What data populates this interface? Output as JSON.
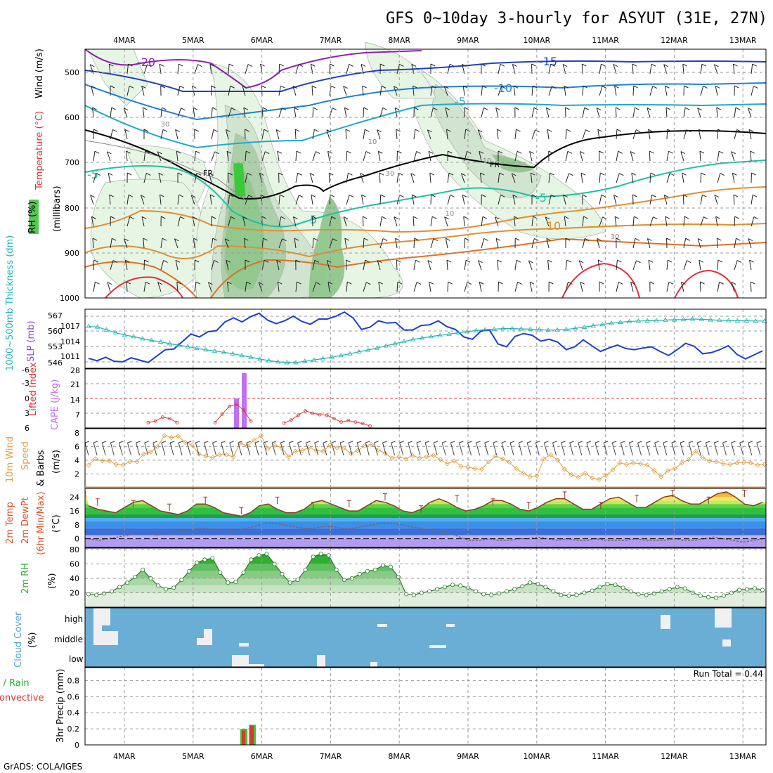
{
  "title": "GFS 0~10day 3-hourly for ASYUT (31E, 27N)",
  "footer": "GrADS: COLA/IGES",
  "dates": [
    "4MAR",
    "5MAR",
    "6MAR",
    "7MAR",
    "8MAR",
    "9MAR",
    "10MAR",
    "11MAR",
    "12MAR",
    "13MAR"
  ],
  "colors": {
    "rh_green": "#33cc33",
    "slp": "#1f3fcc",
    "thickness": "#20b2b2",
    "lifted": "#dd3333",
    "cape": "#c070f0",
    "wind10": "#e0a040",
    "rh2m": "#33aa33",
    "cloud": "#6aaed6",
    "precip_rain": "#33cc33",
    "precip_conv": "#dd3333"
  },
  "panels": {
    "upper": {
      "labels": {
        "wind": "Wind (m/s)",
        "temperature": "Temperature (°C)",
        "rh": "RH (%)",
        "millibars": "(millibars)"
      },
      "pressure_ticks": [
        "500",
        "600",
        "700",
        "800",
        "900",
        "1000"
      ],
      "contour_labels": {
        "t_m20": "-20",
        "t_m15": "-15",
        "t_m10": "-10",
        "t_m5a": "-5",
        "t_m5b": "-5",
        "t_m5c": "-5",
        "t_5a": "5",
        "t_5b": "5",
        "t_10": "10",
        "fr1": "FR",
        "fr2": "FR",
        "rh30a": "30",
        "rh30b": "30",
        "rh30c": "30",
        "rh10a": "10",
        "rh10b": "10",
        "rh10c": "10"
      }
    },
    "slp": {
      "labels": {
        "thickness": "1000~500mb Thickness (dm)",
        "slp": "SLP (mb)"
      },
      "left_ticks": [
        "567",
        "560",
        "553",
        "546"
      ],
      "right_ticks": [
        "1017",
        "1014",
        "1011"
      ]
    },
    "cape": {
      "labels": {
        "lifted": "Lifted Index",
        "cape": "CAPE (J/kg)"
      },
      "left_ticks": [
        "-6",
        "-3",
        "0",
        "3",
        "6"
      ],
      "right_ticks": [
        "28",
        "21",
        "14",
        "7"
      ]
    },
    "wind10": {
      "labels": {
        "a": "10m Wind",
        "b": "Speed",
        "c": "& Barbs",
        "d": "(m/s)"
      },
      "ticks": [
        "8",
        "6",
        "4",
        "2"
      ]
    },
    "temp2m": {
      "labels": {
        "a": "2m Temp",
        "b": "2m DewPt",
        "c": "(6hr Min/Max)",
        "d": "(°C)"
      },
      "ticks": [
        "24",
        "16",
        "8",
        "0"
      ]
    },
    "rh2m": {
      "labels": {
        "a": "2m RH",
        "b": "(%)"
      },
      "ticks": [
        "80",
        "60",
        "40",
        "20"
      ]
    },
    "cloud": {
      "labels": {
        "a": "Cloud Cover",
        "b": "(%)"
      },
      "levels": [
        "high",
        "middle",
        "low"
      ]
    },
    "precip": {
      "labels": {
        "a": "Total / Rain",
        "b": "Convective",
        "c": "3hr Precip (mm)"
      },
      "ticks": [
        "0.8",
        "0.6",
        "0.4",
        "0.2",
        "0"
      ],
      "run_total": "Run Total = 0.44"
    }
  },
  "chart_data": [
    {
      "type": "line",
      "name": "SLP",
      "unit": "mb",
      "values": [
        1011.3,
        1010.9,
        1011.5,
        1010.8,
        1010.7,
        1011.4,
        1011.0,
        1010.6,
        1011.7,
        1012.8,
        1012.9,
        1014.2,
        1015.5,
        1015.0,
        1015.9,
        1016.1,
        1017.6,
        1018.3,
        1017.6,
        1018.5,
        1019.1,
        1017.9,
        1017.3,
        1017.8,
        1018.6,
        1017.7,
        1017.2,
        1018.1,
        1018.1,
        1018.6,
        1019.3,
        1018.3,
        1016.3,
        1016.7,
        1017.8,
        1017.4,
        1017.5,
        1016.2,
        1016.2,
        1017.0,
        1017.1,
        1017.8,
        1016.8,
        1016.3,
        1015.0,
        1014.6,
        1016.0,
        1016.2,
        1013.8,
        1013.3,
        1015.1,
        1015.6,
        1015.3,
        1014.3,
        1014.6,
        1014.1,
        1012.8,
        1013.3,
        1014.5,
        1013.5,
        1012.5,
        1013.1,
        1013.6,
        1013.0,
        1012.8,
        1013.1,
        1013.3,
        1012.5,
        1011.8,
        1012.8,
        1013.9,
        1013.4,
        1012.1,
        1012.3,
        1012.8,
        1013.5,
        1012.0,
        1011.2,
        1011.9,
        1012.6
      ]
    },
    {
      "type": "line",
      "name": "Thickness 1000-500mb",
      "unit": "dm",
      "values": [
        561.5,
        561.3,
        560.1,
        559.0,
        558.0,
        557.4,
        556.5,
        555.8,
        555.2,
        554.5,
        553.9,
        553.3,
        552.6,
        552.0,
        551.5,
        551.0,
        550.4,
        549.7,
        549.0,
        548.2,
        547.6,
        547.1,
        546.8,
        546.8,
        547.3,
        547.9,
        548.4,
        549.0,
        549.7,
        550.4,
        551.2,
        551.9,
        552.7,
        553.6,
        554.5,
        555.4,
        556.2,
        556.8,
        557.4,
        557.9,
        558.4,
        558.9,
        559.4,
        559.8,
        560.2,
        560.4,
        560.6,
        560.6,
        560.5,
        560.4,
        560.2,
        560.0,
        560.1,
        560.3,
        560.7,
        561.2,
        561.8,
        562.3,
        562.8,
        563.2,
        563.5,
        563.7,
        563.8,
        563.9,
        564.1,
        564.2,
        564.3,
        564.5,
        564.4,
        564.2,
        564.0,
        563.9,
        563.8,
        563.8,
        563.7,
        563.7
      ]
    },
    {
      "type": "bar",
      "name": "CAPE",
      "unit": "J/kg",
      "times": [
        "5MAR 15Z",
        "5MAR 18Z"
      ],
      "values": [
        14,
        26
      ]
    },
    {
      "type": "line",
      "name": "Lifted Index",
      "unit": "C",
      "segments": [
        [
          4.9,
          4.6,
          3.8,
          4.1,
          4.9
        ],
        [
          4.9,
          3.2,
          1.6,
          1.2,
          2.4,
          4.6
        ],
        [
          5.0,
          4.4,
          3.4,
          2.5,
          3.0,
          3.3,
          3.4,
          4.1,
          4.8,
          4.5,
          4.8,
          5.1,
          5.6
        ]
      ]
    },
    {
      "type": "line",
      "name": "10m Wind Speed",
      "unit": "m/s",
      "values": [
        3.3,
        4.2,
        3.9,
        3.9,
        3.4,
        3.3,
        3.8,
        3.8,
        4.9,
        5.2,
        6.0,
        7.6,
        7.3,
        7.5,
        6.6,
        6.2,
        4.9,
        4.6,
        4.4,
        4.8,
        4.8,
        4.5,
        6.5,
        6.1,
        6.9,
        7.6,
        5.7,
        6.2,
        5.8,
        4.5,
        5.3,
        5.4,
        5.9,
        5.4,
        5.3,
        6.2,
        5.8,
        5.8,
        5.0,
        5.4,
        6.1,
        6.3,
        5.5,
        5.0,
        4.3,
        4.5,
        4.2,
        4.7,
        4.3,
        4.5,
        4.7,
        4.1,
        3.5,
        3.9,
        3.1,
        3.0,
        2.8,
        2.7,
        3.8,
        4.6,
        4.2,
        3.7,
        2.8,
        2.1,
        1.6,
        1.7,
        4.2,
        4.8,
        4.0,
        2.7,
        1.9,
        1.5,
        2.1,
        1.4,
        1.2,
        1.8,
        2.6,
        3.6,
        3.4,
        3.6,
        3.5,
        3.3,
        2.5,
        1.6,
        2.5,
        2.8,
        3.6,
        4.1,
        5.3,
        4.4,
        3.9,
        3.8,
        3.5,
        3.4,
        3.6,
        3.7,
        3.6,
        3.3,
        3.4
      ]
    },
    {
      "type": "area",
      "name": "2m Temp",
      "unit": "C",
      "values": [
        19,
        17,
        16,
        15,
        18,
        21,
        22,
        19,
        16,
        15,
        14,
        16,
        20,
        20,
        18,
        15,
        14,
        13,
        15,
        19,
        20,
        17,
        15,
        15,
        17,
        21,
        22,
        20,
        18,
        16,
        16,
        19,
        22,
        21,
        19,
        16,
        15,
        17,
        21,
        23,
        21,
        18,
        16,
        17,
        19,
        22,
        22,
        20,
        17,
        16,
        18,
        21,
        23,
        23,
        20,
        17,
        17,
        20,
        23,
        24,
        21,
        18,
        18,
        21,
        24,
        25,
        22,
        20,
        20,
        23,
        26,
        27,
        24,
        20,
        19,
        21
      ]
    },
    {
      "type": "line",
      "name": "2m DewPt",
      "unit": "C",
      "values": [
        0,
        -1,
        0,
        1,
        2,
        3,
        3,
        2,
        3,
        4,
        5,
        6,
        6,
        5,
        4,
        5,
        6,
        7,
        9,
        9,
        8,
        7,
        6,
        6,
        7,
        7,
        6,
        6,
        7,
        8,
        9,
        9,
        8,
        7,
        6,
        5,
        4,
        3,
        1,
        -1,
        -1,
        0,
        -1,
        -1,
        0,
        0,
        1,
        0,
        -1,
        0,
        -1,
        -1,
        0,
        -1,
        -1,
        -1,
        0,
        -1,
        -1,
        -1,
        0,
        -1,
        -1,
        0,
        1,
        0,
        -1,
        -2,
        -1,
        0
      ]
    },
    {
      "type": "area",
      "name": "2m RH",
      "unit": "%",
      "values": [
        18,
        17,
        19,
        22,
        28,
        34,
        42,
        52,
        40,
        30,
        25,
        27,
        38,
        50,
        62,
        66,
        68,
        48,
        34,
        35,
        48,
        66,
        72,
        74,
        60,
        46,
        34,
        38,
        52,
        70,
        74,
        72,
        52,
        38,
        40,
        46,
        50,
        52,
        58,
        56,
        42,
        18,
        17,
        20,
        22,
        25,
        28,
        31,
        30,
        27,
        22,
        18,
        17,
        19,
        22,
        25,
        29,
        34,
        32,
        28,
        22,
        17,
        16,
        17,
        20,
        23,
        28,
        32,
        31,
        27,
        22,
        18,
        17,
        19,
        22,
        25,
        28,
        26,
        20,
        16,
        14,
        13,
        16,
        20,
        24,
        25,
        26,
        24
      ]
    },
    {
      "type": "bar",
      "name": "3hr Precip",
      "unit": "mm",
      "times": [
        "5MAR 18Z",
        "5MAR 21Z"
      ],
      "total": [
        0.2,
        0.25
      ],
      "rain": [
        0.19,
        0.24
      ],
      "convective": [
        0.18,
        0.24
      ]
    }
  ]
}
